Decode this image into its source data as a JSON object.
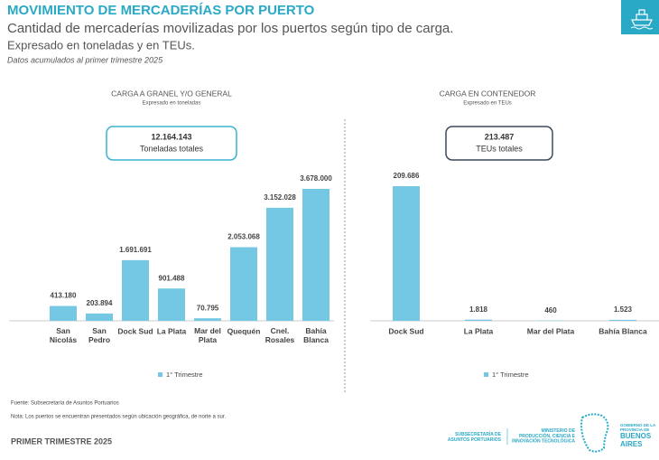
{
  "header": {
    "title": "MOVIMIENTO DE MERCADERÍAS POR PUERTO",
    "subtitle": "Cantidad de mercaderías movilizadas por los puertos según tipo de carga.",
    "subtitle2": "Expresado en toneladas y en TEUs.",
    "note": "Datos acumulados al primer trimestre 2025"
  },
  "chart_data": [
    {
      "type": "bar",
      "title": "CARGA A GRANEL Y/O GENERAL",
      "subtitle": "Expresado en toneladas",
      "total": "12.164.143",
      "total_label": "Toneladas totales",
      "categories": [
        null,
        "San\nNicolás",
        "San\nPedro",
        "Dock Sud",
        "La Plata",
        "Mar del\nPlata",
        "Quequén",
        "Cnel.\nRosales",
        "Bahía\nBlanca"
      ],
      "series": [
        {
          "name": "1° Trimestre",
          "color": "#74c8e4",
          "values": [
            null,
            413180,
            203894,
            1691691,
            901488,
            70795,
            2053068,
            3152028,
            3678000
          ],
          "value_labels": [
            null,
            "413.180",
            "203.894",
            "1.691.691",
            "901.488",
            "70.795",
            "2.053.068",
            "3.152.028",
            "3.678.000"
          ]
        }
      ],
      "legend": "bottom"
    },
    {
      "type": "bar",
      "title": "CARGA EN CONTENEDOR",
      "subtitle": "Expresado en TEUs",
      "total": "213.487",
      "total_label": "TEUs totales",
      "categories": [
        "Dock Sud",
        "La Plata",
        "Mar del  Plata",
        "Bahía Blanca"
      ],
      "series": [
        {
          "name": "1° Trimestre",
          "color": "#74c8e4",
          "values": [
            209686,
            1818,
            460,
            1523
          ],
          "value_labels": [
            "209.686",
            "1.818",
            "460",
            "1.523"
          ]
        }
      ],
      "legend": "bottom"
    }
  ],
  "footer": {
    "source": "Fuente: Subsecretaría de Asuntos Portuarios",
    "note": "Nota: Los puertos se encuentran presentados según ubicación geográfica, de norte a sur.",
    "period": "PRIMER TRIMESTRE 2025",
    "logo1": "SUBSECRETARÍA DE\nASUNTOS PORTUARIOS",
    "logo2": "MINISTERIO DE\nPRODUCCIÓN, CIENCIA E\nINNOVACIÓN TECNOLÓGICA",
    "logo3": "GOBIERNO DE LA\nPROVINCIA DE",
    "logo4": "BUENOS\nAIRES"
  }
}
